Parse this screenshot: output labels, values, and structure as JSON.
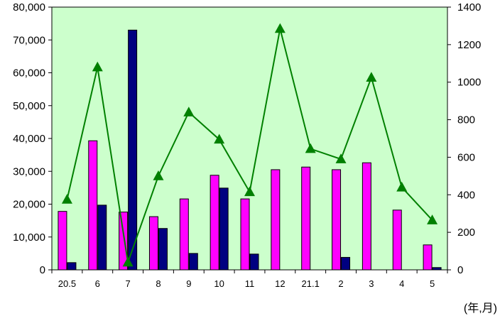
{
  "chart_data": {
    "type": "bar",
    "categories": [
      "20.5",
      "6",
      "7",
      "8",
      "9",
      "10",
      "11",
      "12",
      "21.1",
      "2",
      "3",
      "4",
      "5"
    ],
    "series": [
      {
        "kind": "bar",
        "axis": "left",
        "color": "#ff00ff",
        "values": [
          17800,
          39300,
          17600,
          16200,
          21600,
          28800,
          21600,
          30500,
          31300,
          30500,
          32600,
          18200,
          7600
        ]
      },
      {
        "kind": "bar",
        "axis": "left",
        "color": "#000080",
        "values": [
          2200,
          19700,
          73000,
          12600,
          5000,
          24900,
          4800,
          0,
          0,
          3800,
          0,
          0,
          700
        ]
      },
      {
        "kind": "line",
        "axis": "right",
        "color": "#008000",
        "marker": "triangle",
        "values": [
          375,
          1080,
          40,
          500,
          840,
          695,
          415,
          1285,
          645,
          590,
          1025,
          440,
          265
        ]
      }
    ],
    "yleft": {
      "ylim": [
        0,
        80000
      ],
      "ticks": [
        0,
        10000,
        20000,
        30000,
        40000,
        50000,
        60000,
        70000,
        80000
      ],
      "tick_labels": [
        "0",
        "10,000",
        "20,000",
        "30,000",
        "40,000",
        "50,000",
        "60,000",
        "70,000",
        "80,000"
      ]
    },
    "yright": {
      "ylim": [
        0,
        1400
      ],
      "ticks": [
        0,
        200,
        400,
        600,
        800,
        1000,
        1200,
        1400
      ],
      "tick_labels": [
        "0",
        "200",
        "400",
        "600",
        "800",
        "1000",
        "1200",
        "1400"
      ]
    },
    "xunit": "(年,月)",
    "plot_background": "#ccffcc",
    "grid": false,
    "legend": "none"
  }
}
